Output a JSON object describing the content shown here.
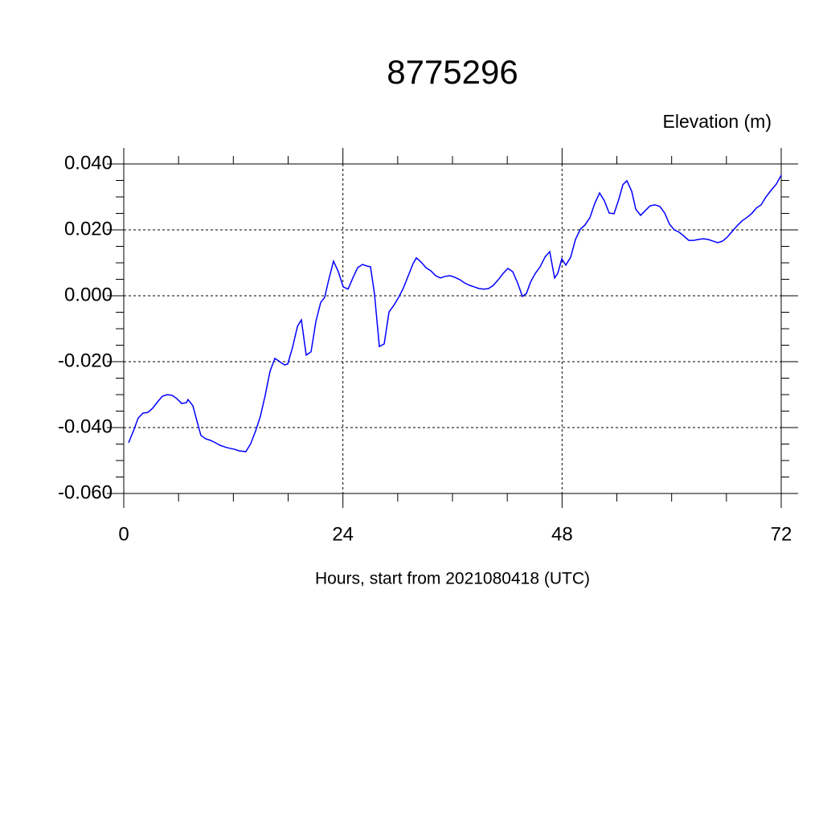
{
  "chart_data": {
    "type": "line",
    "title": "8775296",
    "ylabel": "Elevation (m)",
    "xlabel": "Hours, start from 2021080418 (UTC)",
    "xlim": [
      0,
      72
    ],
    "xticks": [
      0,
      24,
      48,
      72
    ],
    "ylim": [
      -0.06,
      0.04
    ],
    "yticks": [
      {
        "value": -0.06,
        "label": "-0.060"
      },
      {
        "value": -0.04,
        "label": "-0.040"
      },
      {
        "value": -0.02,
        "label": "-0.020"
      },
      {
        "value": 0,
        "label": "0.000"
      },
      {
        "value": 0.02,
        "label": "0.020"
      },
      {
        "value": 0.04,
        "label": "0.040"
      }
    ],
    "grid": true,
    "x": [
      0.53,
      1.06,
      1.58,
      2.11,
      2.64,
      3.17,
      3.7,
      4.23,
      4.75,
      5.28,
      5.81,
      6.34,
      6.87,
      7.04,
      7.57,
      8.01,
      8.45,
      8.98,
      9.51,
      10.04,
      10.56,
      11.09,
      11.62,
      12.15,
      12.68,
      13.37,
      13.9,
      14.44,
      14.96,
      15.49,
      16.02,
      16.55,
      17.08,
      17.61,
      17.96,
      18.49,
      19.02,
      19.45,
      19.98,
      20.51,
      21.04,
      21.57,
      22.0,
      22.45,
      22.97,
      23.5,
      24.03,
      24.56,
      25.09,
      25.61,
      26.14,
      26.67,
      27.02,
      27.46,
      27.99,
      28.52,
      29.05,
      29.58,
      30.1,
      30.63,
      31.16,
      31.69,
      32.04,
      32.57,
      33.1,
      33.62,
      34.15,
      34.68,
      35.21,
      35.74,
      36.26,
      36.79,
      37.32,
      37.85,
      38.38,
      38.9,
      39.43,
      39.96,
      40.49,
      41.02,
      41.55,
      42.07,
      42.6,
      43.13,
      43.66,
      44.1,
      44.54,
      45.07,
      45.6,
      46.12,
      46.65,
      47.18,
      47.53,
      47.97,
      48.41,
      48.94,
      49.47,
      50.0,
      50.52,
      51.05,
      51.58,
      52.11,
      52.64,
      53.16,
      53.69,
      54.22,
      54.66,
      55.1,
      55.63,
      56.07,
      56.6,
      57.13,
      57.65,
      58.18,
      58.71,
      59.24,
      59.77,
      60.29,
      60.82,
      61.35,
      61.88,
      62.41,
      62.94,
      63.46,
      63.99,
      64.52,
      65.05,
      65.58,
      66.1,
      66.63,
      67.16,
      67.69,
      68.22,
      68.75,
      69.27,
      69.8,
      70.33,
      70.95,
      71.47,
      72.0
    ],
    "series": [
      {
        "name": "Elevation",
        "color": "#0000ff",
        "values": [
          -0.0446,
          -0.041,
          -0.0371,
          -0.0356,
          -0.0354,
          -0.0341,
          -0.0322,
          -0.0305,
          -0.03,
          -0.0302,
          -0.0312,
          -0.0327,
          -0.0324,
          -0.0315,
          -0.0334,
          -0.038,
          -0.0424,
          -0.0434,
          -0.0439,
          -0.0446,
          -0.0454,
          -0.0459,
          -0.0463,
          -0.0466,
          -0.0471,
          -0.0473,
          -0.0449,
          -0.041,
          -0.0366,
          -0.0302,
          -0.0229,
          -0.019,
          -0.02,
          -0.021,
          -0.0207,
          -0.0156,
          -0.0093,
          -0.0073,
          -0.018,
          -0.017,
          -0.0078,
          -0.002,
          -0.0005,
          0.0049,
          0.0105,
          0.0073,
          0.0027,
          0.002,
          0.0054,
          0.0085,
          0.0095,
          0.009,
          0.0088,
          0.0005,
          -0.0154,
          -0.0146,
          -0.0049,
          -0.0029,
          -0.0005,
          0.0024,
          0.0061,
          0.0098,
          0.0115,
          0.0102,
          0.0085,
          0.0076,
          0.0061,
          0.0054,
          0.0059,
          0.0061,
          0.0056,
          0.0049,
          0.0039,
          0.0032,
          0.0027,
          0.0022,
          0.002,
          0.0022,
          0.0032,
          0.0049,
          0.0068,
          0.0083,
          0.0073,
          0.0039,
          -0.0002,
          0.0007,
          0.0041,
          0.0068,
          0.0088,
          0.0117,
          0.0134,
          0.0054,
          0.0068,
          0.0112,
          0.0093,
          0.0117,
          0.0171,
          0.0202,
          0.0215,
          0.0237,
          0.028,
          0.0312,
          0.0288,
          0.0251,
          0.0249,
          0.0293,
          0.0337,
          0.0349,
          0.0317,
          0.0263,
          0.0244,
          0.0259,
          0.0273,
          0.0276,
          0.0271,
          0.0251,
          0.0217,
          0.02,
          0.0193,
          0.0181,
          0.0168,
          0.0168,
          0.0171,
          0.0173,
          0.0171,
          0.0166,
          0.0161,
          0.0166,
          0.0178,
          0.0195,
          0.0212,
          0.0227,
          0.0237,
          0.0249,
          0.0266,
          0.0276,
          0.03,
          0.0322,
          0.0339,
          0.0366
        ]
      }
    ]
  }
}
